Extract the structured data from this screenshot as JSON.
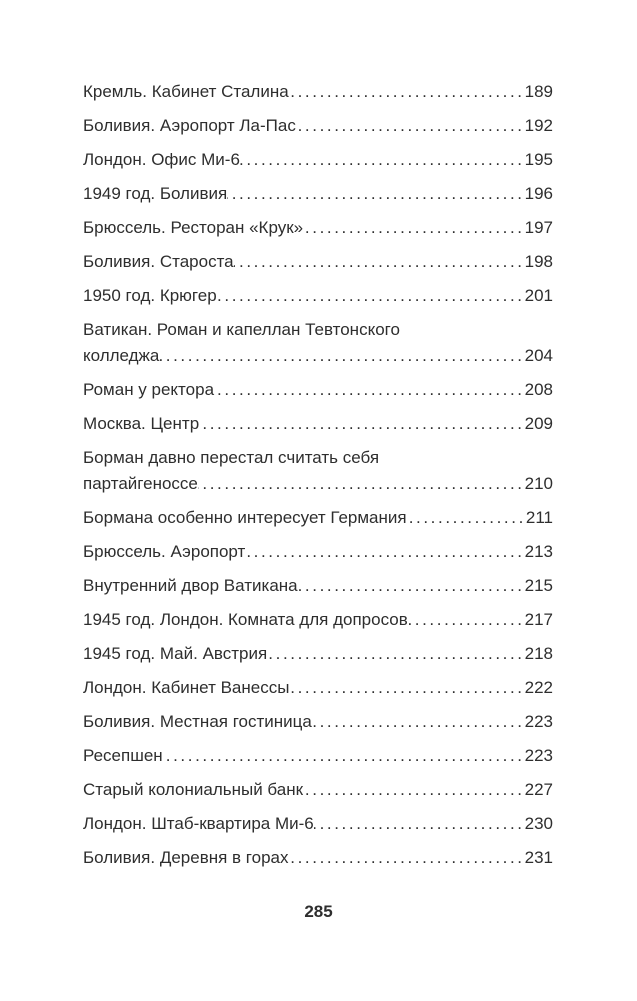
{
  "toc": [
    {
      "title_lines": [
        "Кремль. Кабинет Сталина"
      ],
      "page": "189"
    },
    {
      "title_lines": [
        "Боливия. Аэропорт Ла-Пас"
      ],
      "page": "192"
    },
    {
      "title_lines": [
        "Лондон. Офис Ми-6"
      ],
      "page": "195"
    },
    {
      "title_lines": [
        "1949 год. Боливия"
      ],
      "page": "196"
    },
    {
      "title_lines": [
        "Брюссель. Ресторан «Крук»"
      ],
      "page": "197"
    },
    {
      "title_lines": [
        "Боливия. Староста"
      ],
      "page": "198"
    },
    {
      "title_lines": [
        "1950 год. Крюгер"
      ],
      "page": "201"
    },
    {
      "title_lines": [
        "Ватикан. Роман и капеллан Тевтонского",
        "колледжа"
      ],
      "page": "204"
    },
    {
      "title_lines": [
        "Роман у ректора"
      ],
      "page": "208"
    },
    {
      "title_lines": [
        "Москва. Центр"
      ],
      "page": "209"
    },
    {
      "title_lines": [
        "Борман давно перестал считать себя",
        "партайгеноссе"
      ],
      "page": "210"
    },
    {
      "title_lines": [
        "Бормана особенно интересует Германия"
      ],
      "page": "211"
    },
    {
      "title_lines": [
        "Брюссель. Аэропорт"
      ],
      "page": "213"
    },
    {
      "title_lines": [
        "Внутренний двор Ватикана"
      ],
      "page": "215"
    },
    {
      "title_lines": [
        "1945 год. Лондон. Комната для допросов"
      ],
      "page": "217"
    },
    {
      "title_lines": [
        "1945 год. Май. Австрия"
      ],
      "page": "218"
    },
    {
      "title_lines": [
        "Лондон. Кабинет Ванессы"
      ],
      "page": "222"
    },
    {
      "title_lines": [
        "Боливия. Местная гостиница"
      ],
      "page": "223"
    },
    {
      "title_lines": [
        "Ресепшен"
      ],
      "page": "223"
    },
    {
      "title_lines": [
        "Старый колониальный банк"
      ],
      "page": "227"
    },
    {
      "title_lines": [
        "Лондон. Штаб-квартира Ми-6"
      ],
      "page": "230"
    },
    {
      "title_lines": [
        "Боливия. Деревня в горах"
      ],
      "page": "231"
    }
  ],
  "page_number": "285"
}
